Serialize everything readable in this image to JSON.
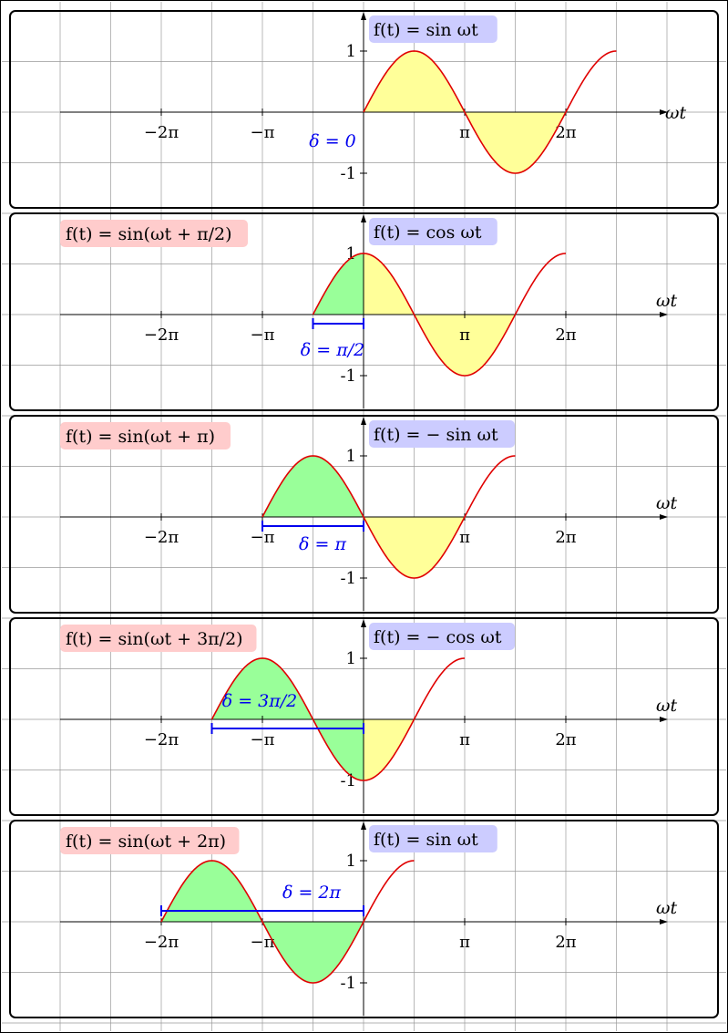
{
  "axis_labels": {
    "x": "ωt"
  },
  "x_tick_labels": [
    "−2π",
    "−π",
    "π",
    "2π"
  ],
  "y_tick_labels": [
    "1",
    "-1"
  ],
  "colors": {
    "curve": "#e00000",
    "positive_fill": "#ffff99",
    "shift_fill": "#99ff99",
    "reference_label_bg": "#ccccff",
    "shifted_label_bg": "#ffcccc",
    "delta": "#0000ee",
    "grid": "#9a9a9a",
    "panel_border": "#000000"
  },
  "panels": [
    {
      "reference_label": "f(t) = sin ωt",
      "shifted_label": "",
      "delta_text": "δ = 0",
      "phase_shift_pi": 0
    },
    {
      "reference_label": "f(t) = cos ωt",
      "shifted_label": "f(t) = sin(ωt + π/2)",
      "delta_text": "δ = π/2",
      "phase_shift_pi": 0.5
    },
    {
      "reference_label": "f(t) = − sin ωt",
      "shifted_label": "f(t) = sin(ωt + π)",
      "delta_text": "δ = π",
      "phase_shift_pi": 1
    },
    {
      "reference_label": "f(t) = − cos ωt",
      "shifted_label": "f(t) = sin(ωt + 3π/2)",
      "delta_text": "δ = 3π/2",
      "phase_shift_pi": 1.5
    },
    {
      "reference_label": "f(t) = sin ωt",
      "shifted_label": "f(t) = sin(ωt + 2π)",
      "delta_text": "δ = 2π",
      "phase_shift_pi": 2
    }
  ]
}
